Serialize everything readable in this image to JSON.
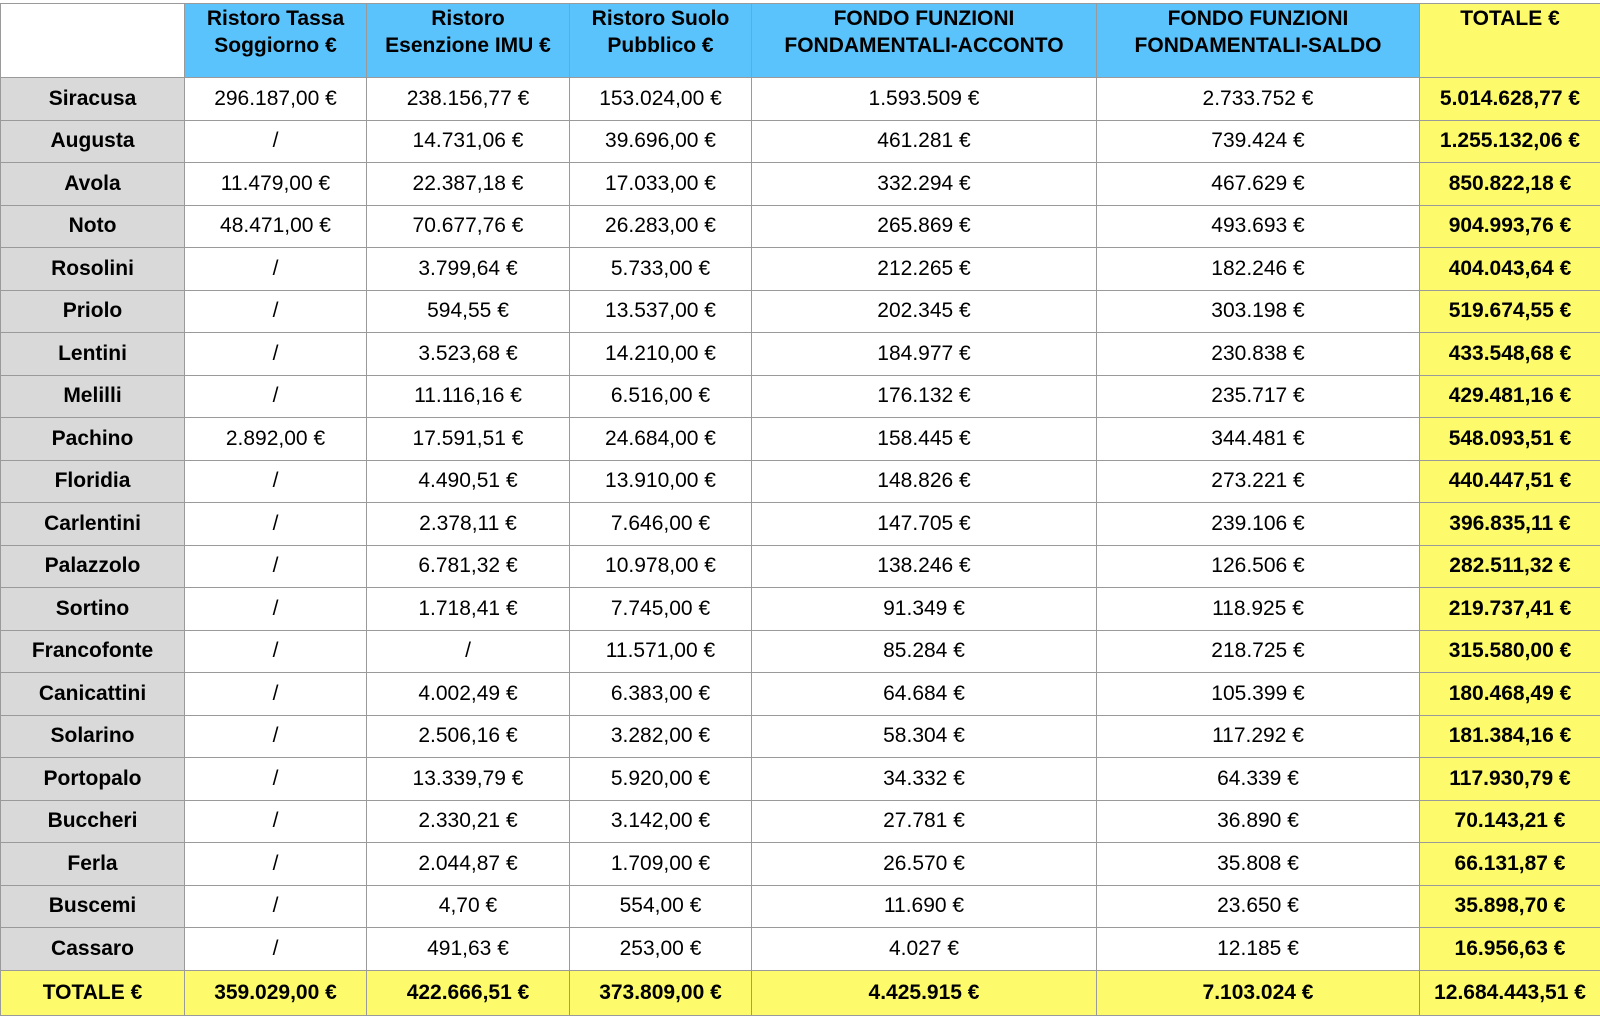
{
  "table": {
    "header": [
      "Ristoro Tassa\nSoggiorno €",
      "Ristoro\nEsenzione IMU €",
      "Ristoro Suolo\nPubblico €",
      "FONDO FUNZIONI\nFONDAMENTALI-ACCONTO",
      "FONDO FUNZIONI\nFONDAMENTALI-SALDO",
      "TOTALE €"
    ],
    "rows": [
      [
        "Siracusa",
        "296.187,00 €",
        "238.156,77 €",
        "153.024,00 €",
        "1.593.509 €",
        "2.733.752 €",
        "5.014.628,77 €"
      ],
      [
        "Augusta",
        "/",
        "14.731,06 €",
        "39.696,00 €",
        "461.281 €",
        "739.424 €",
        "1.255.132,06 €"
      ],
      [
        "Avola",
        "11.479,00 €",
        "22.387,18 €",
        "17.033,00 €",
        "332.294 €",
        "467.629 €",
        "850.822,18 €"
      ],
      [
        "Noto",
        "48.471,00 €",
        "70.677,76 €",
        "26.283,00 €",
        "265.869 €",
        "493.693 €",
        "904.993,76 €"
      ],
      [
        "Rosolini",
        "/",
        "3.799,64 €",
        "5.733,00 €",
        "212.265 €",
        "182.246 €",
        "404.043,64 €"
      ],
      [
        "Priolo",
        "/",
        "594,55 €",
        "13.537,00 €",
        "202.345 €",
        "303.198 €",
        "519.674,55 €"
      ],
      [
        "Lentini",
        "/",
        "3.523,68 €",
        "14.210,00 €",
        "184.977 €",
        "230.838 €",
        "433.548,68 €"
      ],
      [
        "Melilli",
        "/",
        "11.116,16 €",
        "6.516,00 €",
        "176.132 €",
        "235.717 €",
        "429.481,16 €"
      ],
      [
        "Pachino",
        "2.892,00 €",
        "17.591,51 €",
        "24.684,00 €",
        "158.445 €",
        "344.481 €",
        "548.093,51 €"
      ],
      [
        "Floridia",
        "/",
        "4.490,51 €",
        "13.910,00 €",
        "148.826 €",
        "273.221 €",
        "440.447,51 €"
      ],
      [
        "Carlentini",
        "/",
        "2.378,11 €",
        "7.646,00 €",
        "147.705 €",
        "239.106 €",
        "396.835,11 €"
      ],
      [
        "Palazzolo",
        "/",
        "6.781,32 €",
        "10.978,00 €",
        "138.246 €",
        "126.506 €",
        "282.511,32 €"
      ],
      [
        "Sortino",
        "/",
        "1.718,41 €",
        "7.745,00 €",
        "91.349 €",
        "118.925 €",
        "219.737,41 €"
      ],
      [
        "Francofonte",
        "/",
        "/",
        "11.571,00 €",
        "85.284 €",
        "218.725 €",
        "315.580,00 €"
      ],
      [
        "Canicattini",
        "/",
        "4.002,49 €",
        "6.383,00 €",
        "64.684 €",
        "105.399 €",
        "180.468,49 €"
      ],
      [
        "Solarino",
        "/",
        "2.506,16 €",
        "3.282,00 €",
        "58.304 €",
        "117.292 €",
        "181.384,16 €"
      ],
      [
        "Portopalo",
        "/",
        "13.339,79 €",
        "5.920,00 €",
        "34.332 €",
        "64.339 €",
        "117.930,79 €"
      ],
      [
        "Buccheri",
        "/",
        "2.330,21 €",
        "3.142,00 €",
        "27.781 €",
        "36.890 €",
        "70.143,21 €"
      ],
      [
        "Ferla",
        "/",
        "2.044,87 €",
        "1.709,00 €",
        "26.570 €",
        "35.808 €",
        "66.131,87 €"
      ],
      [
        "Buscemi",
        "/",
        "4,70 €",
        "554,00 €",
        "11.690 €",
        "23.650 €",
        "35.898,70 €"
      ],
      [
        "Cassaro",
        "/",
        "491,63 €",
        "253,00 €",
        "4.027 €",
        "12.185 €",
        "16.956,63 €"
      ]
    ],
    "footer": [
      "TOTALE €",
      "359.029,00 €",
      "422.666,51 €",
      "373.809,00 €",
      "4.425.915 €",
      "7.103.024 €",
      "12.684.443,51 €"
    ]
  }
}
